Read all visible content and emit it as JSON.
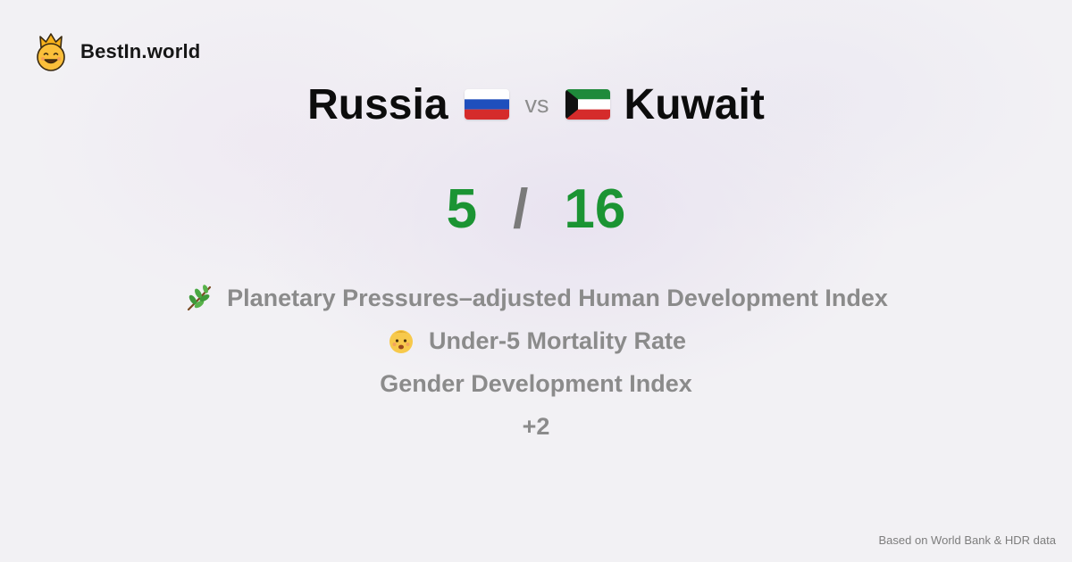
{
  "brand": {
    "name": "BestIn.world",
    "logo_icon": "crown-smiley-icon"
  },
  "comparison": {
    "left_country": "Russia",
    "left_flag": "russia-flag-icon",
    "vs_label": "vs",
    "right_country": "Kuwait",
    "right_flag": "kuwait-flag-icon"
  },
  "score": {
    "left": "5",
    "separator": "/",
    "right": "16",
    "color": "#1b9433"
  },
  "metrics": [
    {
      "label": "Planetary Pressures–adjusted Human Development Index",
      "icon": "plant-branch-icon"
    },
    {
      "label": "Under-5 Mortality Rate",
      "icon": "baby-face-icon"
    },
    {
      "label": "Gender Development Index",
      "icon": ""
    },
    {
      "label": "+2",
      "icon": ""
    }
  ],
  "footer": {
    "note": "Based on World Bank & HDR data"
  }
}
